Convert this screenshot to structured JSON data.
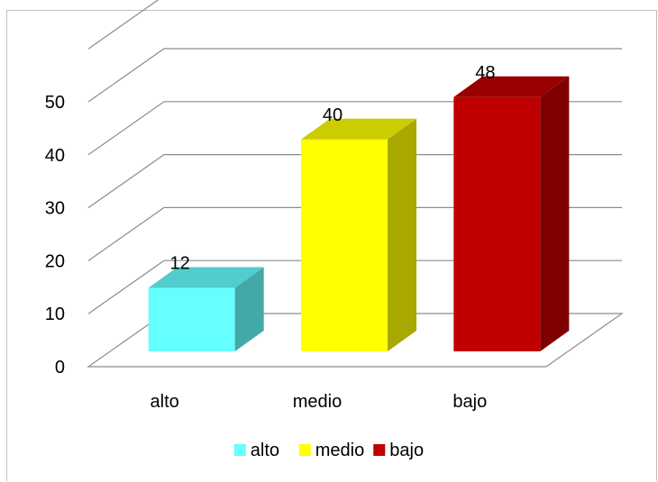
{
  "chart_data": {
    "type": "bar",
    "style": "3d-clustered-column",
    "categories": [
      "alto",
      "medio",
      "bajo"
    ],
    "series": [
      {
        "category": "alto",
        "value": 12,
        "color": "#66FFFF"
      },
      {
        "category": "medio",
        "value": 40,
        "color": "#FFFF00"
      },
      {
        "category": "bajo",
        "value": 48,
        "color": "#C00000"
      }
    ],
    "values": [
      12,
      40,
      48
    ],
    "data_labels": [
      "12",
      "40",
      "48"
    ],
    "y_ticks": [
      "0",
      "10",
      "20",
      "30",
      "40",
      "50"
    ],
    "ylim": [
      0,
      60
    ],
    "grid": true,
    "legend_position": "bottom",
    "legend": [
      {
        "label": "alto",
        "color": "#66FFFF"
      },
      {
        "label": "medio",
        "color": "#FFFF00"
      },
      {
        "label": "bajo",
        "color": "#C00000"
      }
    ],
    "title": "",
    "xlabel": "",
    "ylabel": ""
  }
}
